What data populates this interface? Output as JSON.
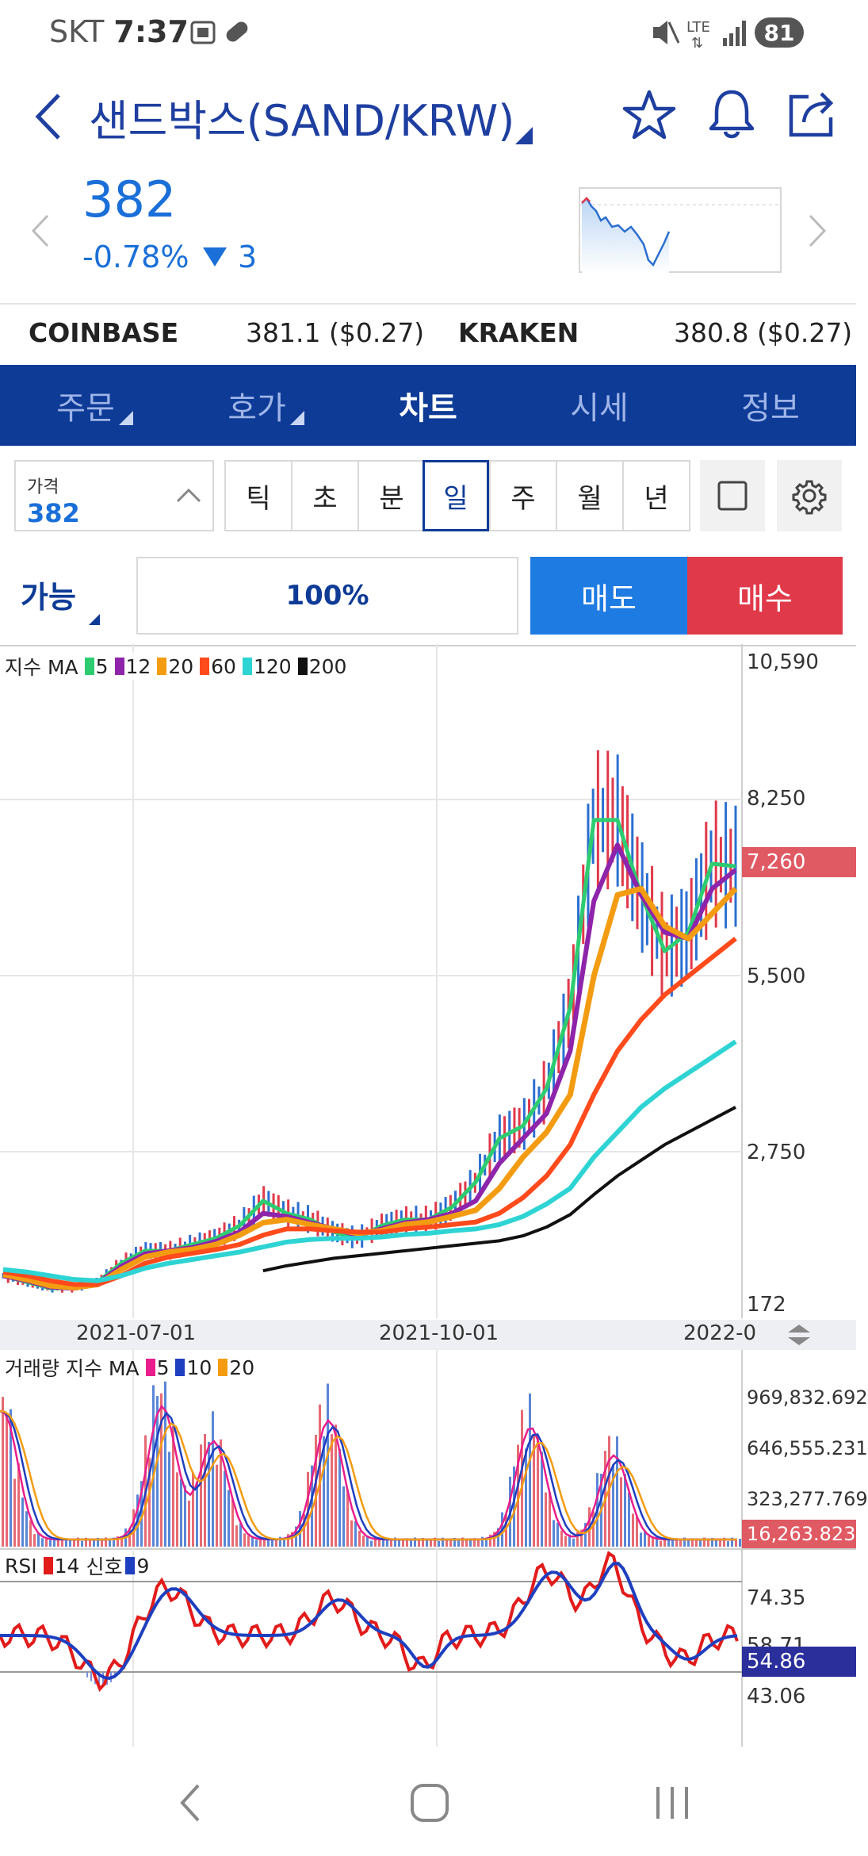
{
  "status_bar": {
    "carrier": "SKT",
    "time": "7:37",
    "network": "LTE",
    "battery": "81",
    "icons": [
      "screenshot-icon",
      "link-icon",
      "mute-icon",
      "lte-icon",
      "signal-icon",
      "battery-icon"
    ]
  },
  "header": {
    "title": "샌드박스(SAND/KRW)",
    "icons": [
      "back-icon",
      "dropdown-triangle-icon",
      "star-icon",
      "bell-icon",
      "share-icon"
    ]
  },
  "quote": {
    "price": "382",
    "change_percent": "-0.78%",
    "change_abs": "3",
    "direction": "down"
  },
  "exchanges": [
    {
      "name": "COINBASE",
      "value": "381.1 ($0.27)"
    },
    {
      "name": "KRAKEN",
      "value": "380.8 ($0.27)"
    }
  ],
  "tabs": [
    {
      "label": "주문",
      "active": false,
      "has_menu": true
    },
    {
      "label": "호가",
      "active": false,
      "has_menu": true
    },
    {
      "label": "차트",
      "active": true,
      "has_menu": false
    },
    {
      "label": "시세",
      "active": false,
      "has_menu": false
    },
    {
      "label": "정보",
      "active": false,
      "has_menu": false
    }
  ],
  "toolbar": {
    "price_label": "가격",
    "price_value": "382",
    "periods": [
      "틱",
      "초",
      "분",
      "일",
      "주",
      "월",
      "년"
    ],
    "selected_period": "일"
  },
  "order": {
    "available_label": "가능",
    "percent": "100%",
    "sell_label": "매도",
    "buy_label": "매수"
  },
  "colors": {
    "brand_navy": "#0d3b96",
    "up_red": "#e0394a",
    "down_blue": "#1e7be2",
    "ma5": "#2ecc71",
    "ma12": "#8e24aa",
    "ma20": "#f39c12",
    "ma60": "#ff4a1c",
    "ma120": "#2ed3d3",
    "ma200": "#111111"
  },
  "chart_data": [
    {
      "type": "line",
      "title": "",
      "legend_text": "지수 MA",
      "legend": [
        {
          "name": "5",
          "color": "#2ecc71"
        },
        {
          "name": "12",
          "color": "#8e24aa"
        },
        {
          "name": "20",
          "color": "#f39c12"
        },
        {
          "name": "60",
          "color": "#ff4a1c"
        },
        {
          "name": "120",
          "color": "#2ed3d3"
        },
        {
          "name": "200",
          "color": "#111111"
        }
      ],
      "y_ticks": [
        "10,590",
        "8,250",
        "5,500",
        "2,750",
        "172"
      ],
      "current_label": "7,260",
      "x_ticks": [
        "2021-07-01",
        "2021-10-01",
        "2022-0"
      ],
      "ylim": [
        172,
        10590
      ],
      "x": [
        0,
        10,
        20,
        30,
        40,
        50,
        60,
        70,
        80,
        90,
        100,
        110,
        120,
        130,
        140,
        150,
        160,
        170,
        180,
        190,
        200,
        210,
        220,
        230,
        240,
        250,
        260,
        270,
        280,
        290,
        300,
        310
      ],
      "series": [
        {
          "name": "5",
          "values": [
            700,
            600,
            500,
            500,
            600,
            900,
            1100,
            1100,
            1200,
            1300,
            1500,
            1900,
            1700,
            1600,
            1400,
            1300,
            1500,
            1600,
            1600,
            1800,
            2200,
            2900,
            3100,
            3700,
            5000,
            8000,
            8000,
            6800,
            5900,
            6200,
            7300,
            7260
          ]
        },
        {
          "name": "12",
          "values": [
            700,
            620,
            520,
            500,
            580,
            850,
            1050,
            1100,
            1150,
            1250,
            1400,
            1700,
            1650,
            1550,
            1450,
            1350,
            1450,
            1550,
            1600,
            1700,
            1900,
            2500,
            2900,
            3300,
            4300,
            6700,
            7600,
            6800,
            6200,
            6100,
            6900,
            7200
          ]
        },
        {
          "name": "20",
          "values": [
            720,
            640,
            540,
            510,
            560,
            800,
            1000,
            1080,
            1120,
            1200,
            1350,
            1550,
            1600,
            1520,
            1450,
            1380,
            1420,
            1520,
            1560,
            1650,
            1750,
            2100,
            2600,
            3000,
            3600,
            5500,
            6800,
            6900,
            6300,
            6100,
            6500,
            6900
          ]
        },
        {
          "name": "60",
          "values": [
            760,
            700,
            620,
            560,
            560,
            700,
            900,
            1000,
            1060,
            1120,
            1200,
            1350,
            1450,
            1450,
            1420,
            1400,
            1400,
            1450,
            1480,
            1520,
            1560,
            1700,
            1950,
            2300,
            2800,
            3600,
            4300,
            4800,
            5200,
            5500,
            5800,
            6100
          ]
        },
        {
          "name": "120",
          "values": [
            800,
            760,
            700,
            640,
            620,
            700,
            820,
            900,
            960,
            1020,
            1080,
            1160,
            1240,
            1280,
            1300,
            1300,
            1320,
            1360,
            1380,
            1420,
            1450,
            1520,
            1650,
            1850,
            2100,
            2600,
            3000,
            3400,
            3700,
            3950,
            4200,
            4450
          ]
        },
        {
          "name": "200",
          "values": [
            null,
            null,
            null,
            null,
            null,
            null,
            null,
            null,
            null,
            null,
            null,
            780,
            860,
            920,
            980,
            1020,
            1060,
            1100,
            1140,
            1180,
            1220,
            1260,
            1340,
            1480,
            1680,
            2000,
            2300,
            2550,
            2800,
            3000,
            3200,
            3400
          ]
        }
      ]
    },
    {
      "type": "bar",
      "title": "",
      "legend_text": "거래량 지수 MA",
      "legend": [
        {
          "name": "5",
          "color": "#e91e8c"
        },
        {
          "name": "10",
          "color": "#1e3fbf"
        },
        {
          "name": "20",
          "color": "#f39c12"
        }
      ],
      "y_ticks": [
        "969,832.692",
        "646,555.231",
        "323,277.769"
      ],
      "current_label": "16,263.823"
    },
    {
      "type": "line",
      "title": "",
      "legend_text": "RSI",
      "legend": [
        {
          "name": "14",
          "color": "#e21b1b"
        },
        {
          "name": "신호",
          "color": ""
        },
        {
          "name": "9",
          "color": "#1e3fbf"
        }
      ],
      "y_ticks": [
        "74.35",
        "58.71",
        "43.06"
      ],
      "current_label": "54.86"
    }
  ]
}
